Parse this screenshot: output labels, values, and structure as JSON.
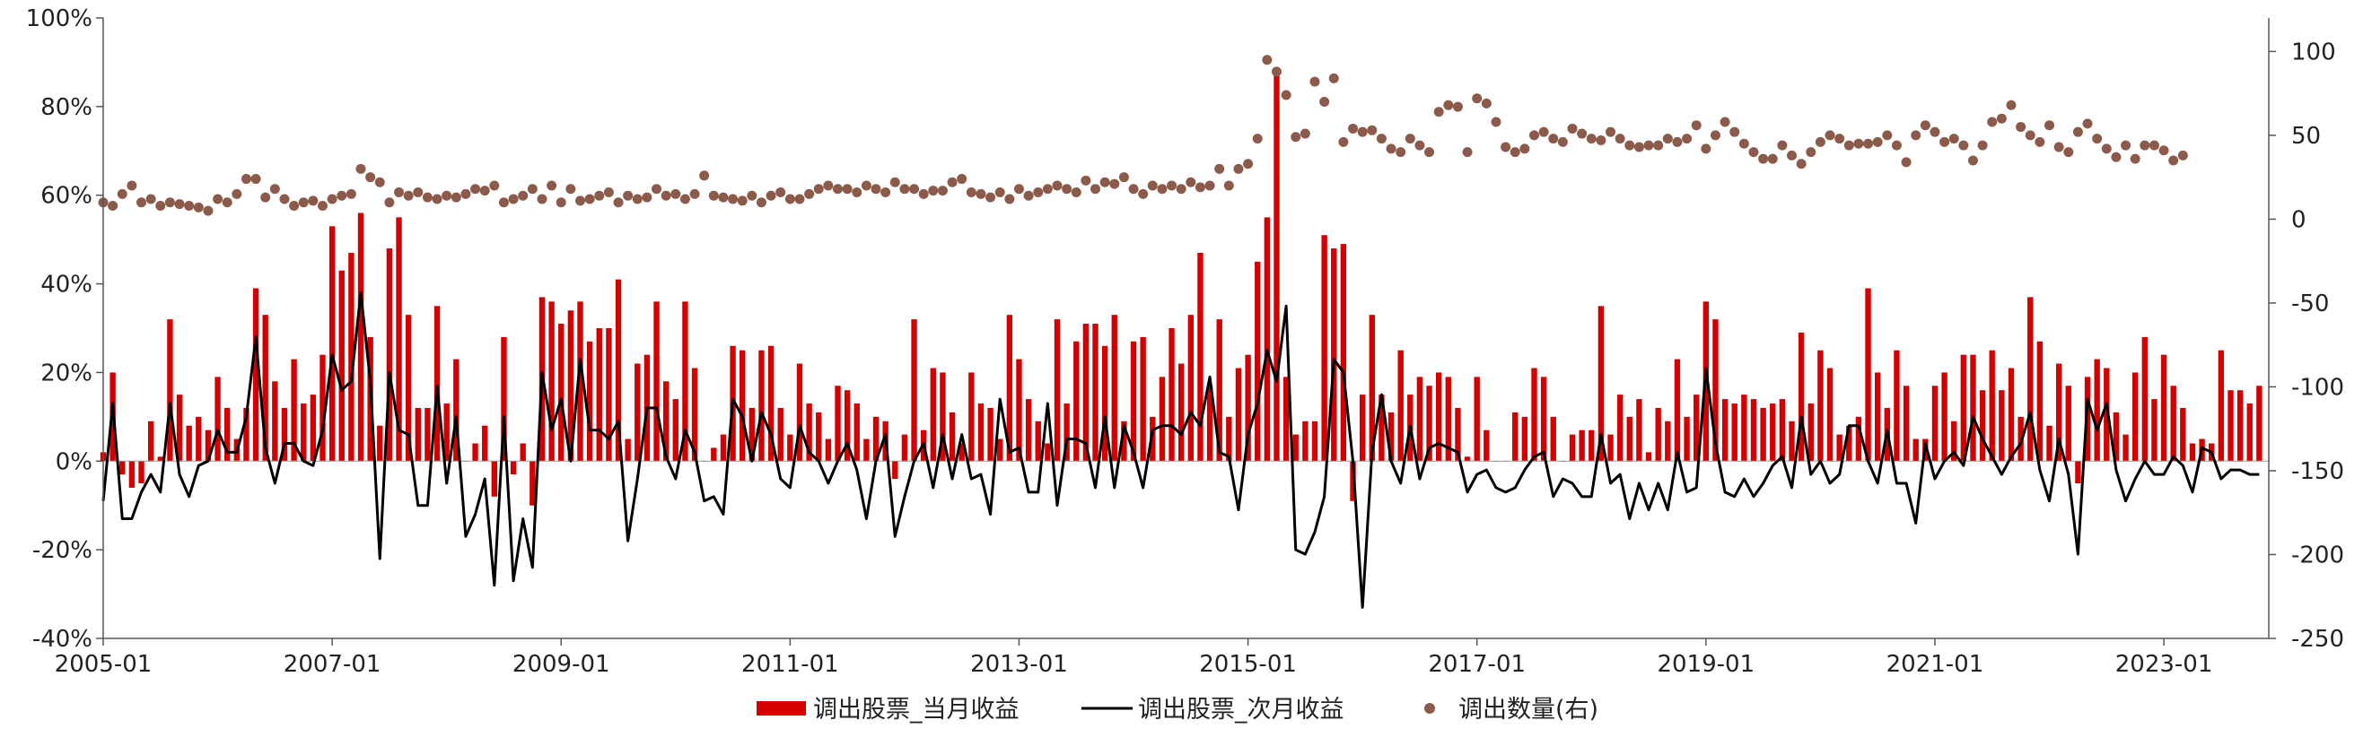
{
  "chart_data": {
    "type": "bar",
    "x_start": "2005-01",
    "x_end": "2023-12",
    "x_tick_labels": [
      "2005-01",
      "2007-01",
      "2009-01",
      "2011-01",
      "2013-01",
      "2015-01",
      "2017-01",
      "2019-01",
      "2021-01",
      "2023-01"
    ],
    "left_axis": {
      "ylim": [
        -0.4,
        1.0
      ],
      "ticks": [
        "-40%",
        "-20%",
        "0%",
        "20%",
        "40%",
        "60%",
        "80%",
        "100%"
      ]
    },
    "right_axis": {
      "ylim": [
        -250,
        120
      ],
      "ticks": [
        "-250",
        "-200",
        "-150",
        "-100",
        "-50",
        "0",
        "50",
        "100"
      ]
    },
    "legend": {
      "position": "bottom"
    },
    "colors": {
      "current_return": "#d40000",
      "next_return": "#000000",
      "count": "#8b5a4a"
    },
    "series": [
      {
        "name": "调出股票_当月收益",
        "type": "bar",
        "axis": "left",
        "values": [
          0.02,
          0.2,
          -0.03,
          -0.06,
          -0.05,
          0.09,
          0.01,
          0.32,
          0.15,
          0.08,
          0.1,
          0.07,
          0.19,
          0.12,
          0.05,
          0.12,
          0.39,
          0.33,
          0.18,
          0.12,
          0.23,
          0.13,
          0.15,
          0.24,
          0.53,
          0.43,
          0.47,
          0.56,
          0.28,
          0.08,
          0.48,
          0.55,
          0.33,
          0.12,
          0.12,
          0.35,
          0.13,
          0.23,
          0.0,
          0.04,
          0.08,
          -0.08,
          0.28,
          -0.03,
          0.04,
          -0.1,
          0.37,
          0.36,
          0.31,
          0.34,
          0.36,
          0.27,
          0.3,
          0.3,
          0.41,
          0.05,
          0.22,
          0.24,
          0.36,
          0.18,
          0.14,
          0.36,
          0.21,
          0.0,
          0.03,
          0.06,
          0.26,
          0.25,
          0.12,
          0.25,
          0.26,
          0.12,
          0.06,
          0.22,
          0.13,
          0.11,
          0.05,
          0.17,
          0.16,
          0.13,
          0.05,
          0.1,
          0.09,
          -0.04,
          0.06,
          0.32,
          0.07,
          0.21,
          0.2,
          0.11,
          0.04,
          0.2,
          0.13,
          0.12,
          0.05,
          0.33,
          0.23,
          0.14,
          0.09,
          0.04,
          0.32,
          0.13,
          0.27,
          0.31,
          0.31,
          0.26,
          0.33,
          0.09,
          0.27,
          0.28,
          0.1,
          0.19,
          0.3,
          0.22,
          0.33,
          0.47,
          0.17,
          0.32,
          0.1,
          0.21,
          0.24,
          0.45,
          0.55,
          0.88,
          0.19,
          0.06,
          0.09,
          0.09,
          0.51,
          0.48,
          0.49,
          -0.09,
          0.15,
          0.33,
          0.15,
          0.11,
          0.25,
          0.15,
          0.19,
          0.17,
          0.2,
          0.19,
          0.12,
          0.01,
          0.19,
          0.07,
          0.0,
          0.0,
          0.11,
          0.1,
          0.21,
          0.19,
          0.1,
          0.0,
          0.06,
          0.07,
          0.07,
          0.35,
          0.06,
          0.15,
          0.1,
          0.14,
          0.02,
          0.12,
          0.09,
          0.23,
          0.1,
          0.15,
          0.36,
          0.32,
          0.14,
          0.13,
          0.15,
          0.14,
          0.12,
          0.13,
          0.14,
          0.09,
          0.29,
          0.13,
          0.25,
          0.21,
          0.06,
          0.08,
          0.1,
          0.39,
          0.2,
          0.12,
          0.25,
          0.17,
          0.05,
          0.05,
          0.17,
          0.2,
          0.09,
          0.24,
          0.24,
          0.16,
          0.25,
          0.16,
          0.21,
          0.1,
          0.37,
          0.27,
          0.08,
          0.22,
          0.17,
          -0.05,
          0.19,
          0.23,
          0.21,
          0.11,
          0.06,
          0.2,
          0.28,
          0.14,
          0.24,
          0.17,
          0.12,
          0.04,
          0.05,
          0.04,
          0.25,
          0.16,
          0.16,
          0.13,
          0.17
        ]
      },
      {
        "name": "调出股票_次月收益",
        "type": "line",
        "axis": "left",
        "values": [
          -0.09,
          0.13,
          -0.13,
          -0.13,
          -0.07,
          -0.03,
          -0.07,
          0.13,
          -0.03,
          -0.08,
          -0.01,
          0.0,
          0.07,
          0.02,
          0.02,
          0.1,
          0.28,
          0.03,
          -0.05,
          0.04,
          0.04,
          0.0,
          -0.01,
          0.07,
          0.24,
          0.16,
          0.18,
          0.38,
          0.18,
          -0.22,
          0.2,
          0.07,
          0.06,
          -0.1,
          -0.1,
          0.17,
          -0.05,
          0.1,
          -0.17,
          -0.12,
          -0.04,
          -0.28,
          0.1,
          -0.27,
          -0.13,
          -0.24,
          0.2,
          0.07,
          0.14,
          0.0,
          0.23,
          0.07,
          0.07,
          0.05,
          0.09,
          -0.18,
          -0.04,
          0.12,
          0.12,
          0.01,
          -0.04,
          0.07,
          0.02,
          -0.09,
          -0.08,
          -0.12,
          0.14,
          0.1,
          0.0,
          0.11,
          0.06,
          -0.04,
          -0.06,
          0.08,
          0.02,
          0.0,
          -0.05,
          0.0,
          0.04,
          -0.02,
          -0.13,
          0.0,
          0.06,
          -0.17,
          -0.08,
          0.0,
          0.04,
          -0.06,
          0.06,
          -0.04,
          0.06,
          -0.04,
          -0.03,
          -0.12,
          0.14,
          0.02,
          0.03,
          -0.07,
          -0.07,
          0.13,
          -0.1,
          0.05,
          0.05,
          0.04,
          -0.06,
          0.1,
          -0.06,
          0.08,
          0.02,
          -0.06,
          0.07,
          0.08,
          0.08,
          0.06,
          0.11,
          0.08,
          0.19,
          0.02,
          0.01,
          -0.11,
          0.06,
          0.13,
          0.25,
          0.18,
          0.35,
          -0.2,
          -0.21,
          -0.16,
          -0.08,
          0.23,
          0.2,
          0.0,
          -0.33,
          0.02,
          0.15,
          0.0,
          -0.05,
          0.08,
          -0.04,
          0.03,
          0.04,
          0.03,
          0.02,
          -0.07,
          -0.03,
          -0.02,
          -0.06,
          -0.07,
          -0.06,
          -0.02,
          0.01,
          0.02,
          -0.08,
          -0.04,
          -0.05,
          -0.08,
          -0.08,
          0.06,
          -0.05,
          -0.03,
          -0.13,
          -0.05,
          -0.11,
          -0.05,
          -0.11,
          0.02,
          -0.07,
          -0.06,
          0.21,
          0.04,
          -0.07,
          -0.08,
          -0.04,
          -0.08,
          -0.05,
          -0.01,
          0.01,
          -0.06,
          0.1,
          -0.03,
          0.0,
          -0.05,
          -0.03,
          0.08,
          0.08,
          0.0,
          -0.05,
          0.07,
          -0.05,
          -0.05,
          -0.14,
          0.04,
          -0.04,
          0.0,
          0.02,
          -0.01,
          0.1,
          0.05,
          0.01,
          -0.03,
          0.01,
          0.04,
          0.11,
          -0.02,
          -0.09,
          0.05,
          -0.03,
          -0.21,
          0.14,
          0.07,
          0.13,
          -0.02,
          -0.09,
          -0.04,
          0.0,
          -0.03,
          -0.03,
          0.01,
          -0.01,
          -0.07,
          0.03,
          0.02,
          -0.04,
          -0.02,
          -0.02,
          -0.03,
          -0.03
        ]
      },
      {
        "name": "调出数量(右)",
        "type": "scatter",
        "axis": "right",
        "values": [
          10,
          8,
          15,
          20,
          10,
          12,
          8,
          10,
          9,
          8,
          7,
          5,
          12,
          10,
          15,
          24,
          24,
          13,
          18,
          12,
          8,
          10,
          11,
          8,
          12,
          14,
          15,
          30,
          25,
          22,
          10,
          16,
          14,
          16,
          13,
          12,
          14,
          13,
          15,
          18,
          17,
          20,
          10,
          12,
          14,
          18,
          12,
          20,
          10,
          18,
          11,
          12,
          14,
          16,
          10,
          14,
          12,
          13,
          18,
          14,
          15,
          12,
          15,
          26,
          14,
          13,
          12,
          11,
          14,
          10,
          14,
          16,
          12,
          12,
          15,
          18,
          20,
          18,
          18,
          16,
          20,
          18,
          16,
          22,
          18,
          18,
          15,
          17,
          17,
          22,
          24,
          16,
          15,
          13,
          16,
          12,
          18,
          14,
          16,
          18,
          20,
          18,
          16,
          23,
          18,
          22,
          21,
          25,
          18,
          15,
          20,
          18,
          20,
          18,
          22,
          19,
          20,
          30,
          20,
          30,
          33,
          48,
          95,
          88,
          74,
          49,
          51,
          82,
          70,
          84,
          46,
          54,
          52,
          53,
          48,
          42,
          40,
          48,
          44,
          40,
          64,
          68,
          67,
          40,
          72,
          69,
          58,
          43,
          40,
          42,
          50,
          52,
          48,
          46,
          54,
          51,
          48,
          47,
          52,
          48,
          44,
          43,
          44,
          44,
          48,
          46,
          48,
          56,
          42,
          50,
          58,
          52,
          45,
          40,
          36,
          36,
          44,
          38,
          33,
          40,
          46,
          50,
          48,
          44,
          45,
          45,
          46,
          50,
          44,
          34,
          50,
          56,
          52,
          46,
          48,
          44,
          35,
          44,
          58,
          60,
          68,
          55,
          50,
          46,
          56,
          43,
          40,
          52,
          57,
          48,
          42,
          37,
          44,
          36,
          44,
          44,
          41,
          35,
          38
        ]
      }
    ]
  }
}
